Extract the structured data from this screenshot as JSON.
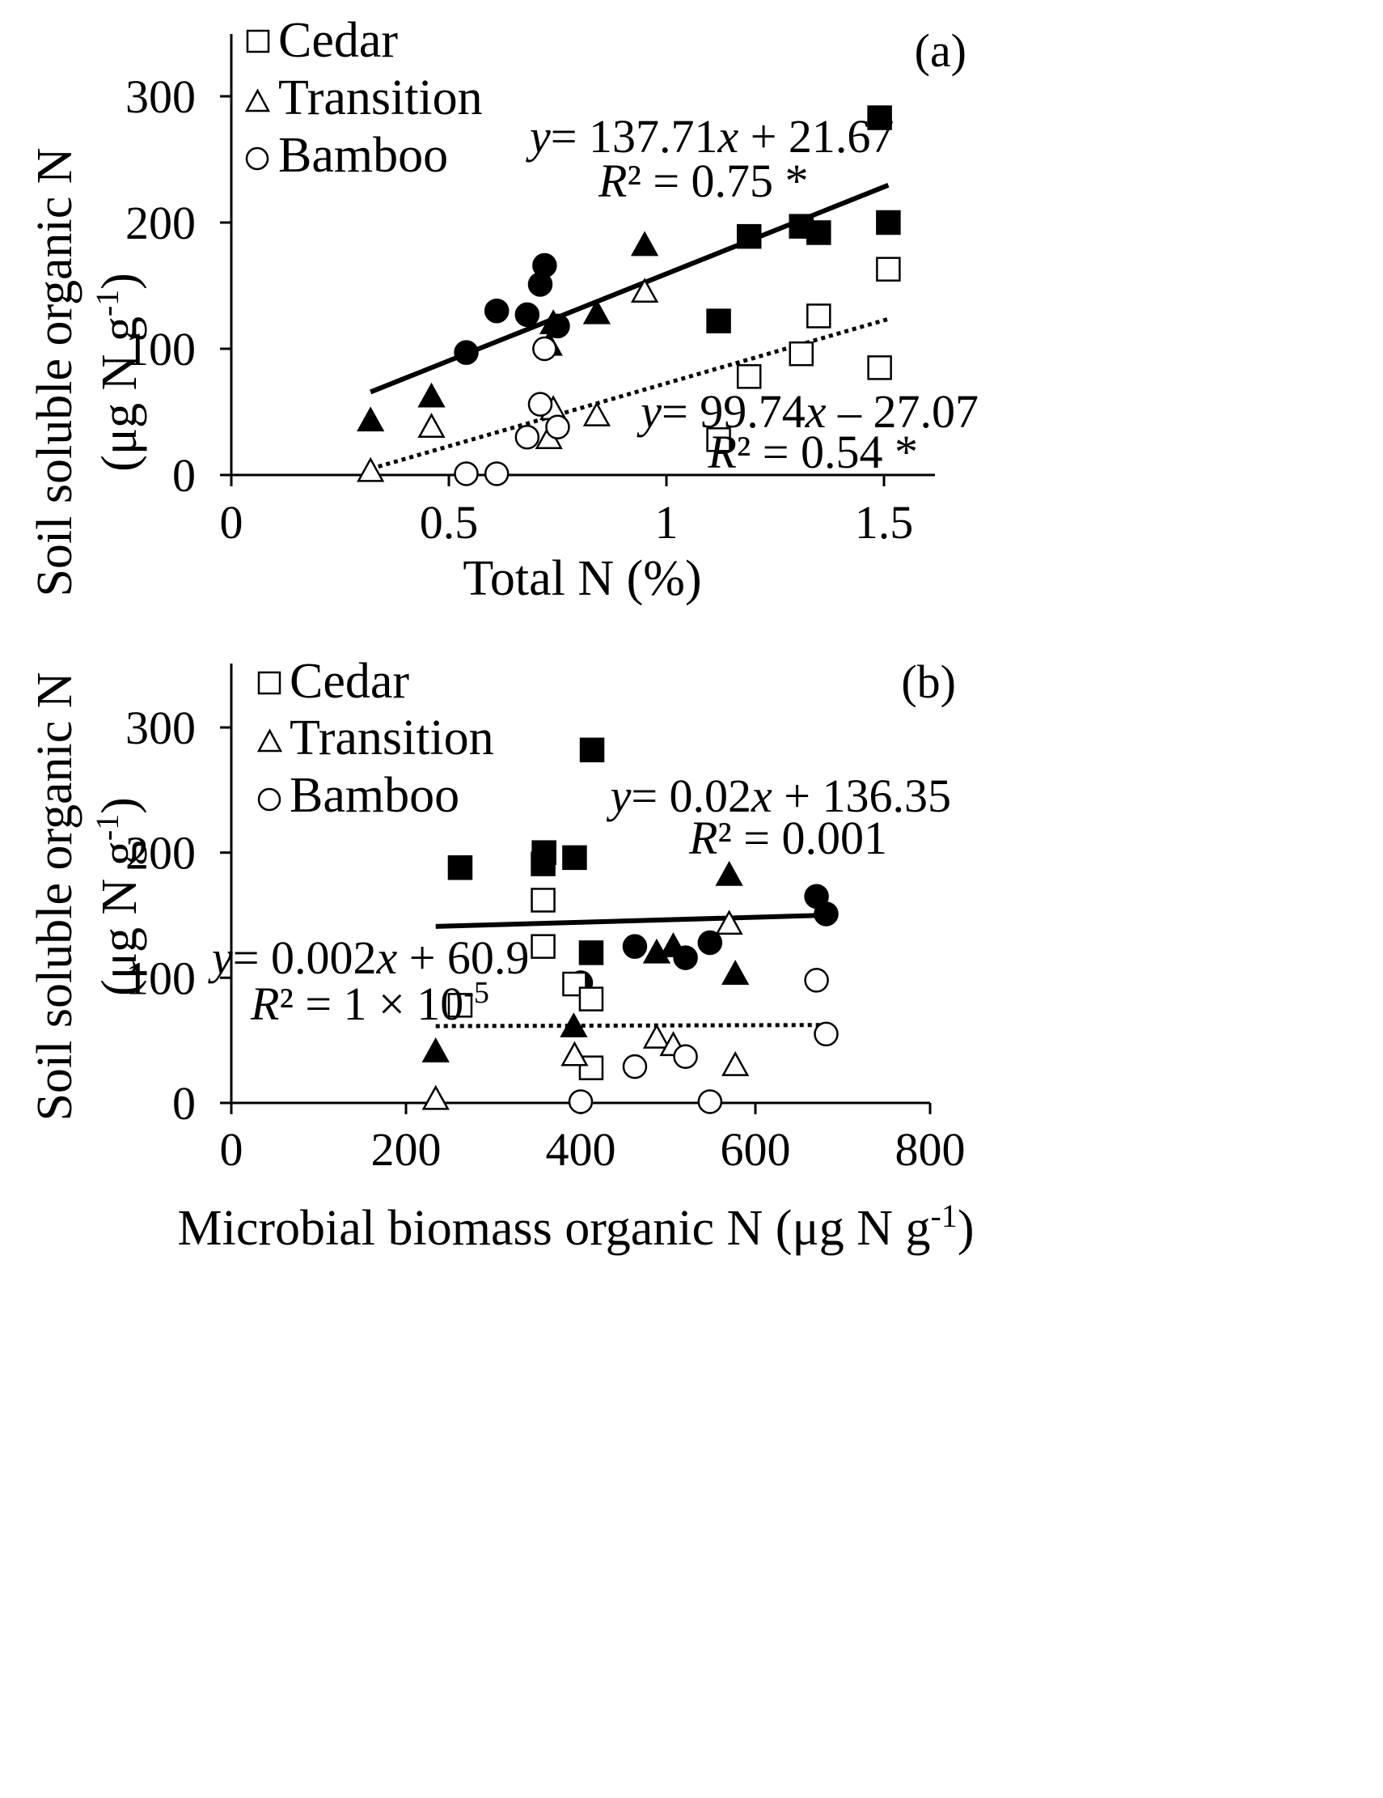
{
  "chart_data": [
    {
      "type": "scatter",
      "panel_label": "(a)",
      "xlabel": "Total N (%)",
      "ylabel_line1": "Soil soluble organic N",
      "ylabel_line2_pre": "(μg N g",
      "ylabel_line2_sup": "-1",
      "ylabel_line2_post": ")",
      "xlim": [
        0,
        1.6
      ],
      "ylim": [
        0,
        350
      ],
      "xticks": [
        0,
        0.5,
        1,
        1.5
      ],
      "xtick_labels": [
        "0",
        "0.5",
        "1",
        "1.5"
      ],
      "yticks": [
        0,
        100,
        200,
        300
      ],
      "ytick_labels": [
        "0",
        "100",
        "200",
        "300"
      ],
      "legend": [
        {
          "marker": "square",
          "label": "Cedar"
        },
        {
          "marker": "triangle",
          "label": "Transition"
        },
        {
          "marker": "circle",
          "label": "Bamboo"
        }
      ],
      "series": [
        {
          "name": "Cedar",
          "marker": "square",
          "filled": true,
          "points": [
            [
              1.49,
              283
            ],
            [
              1.19,
              189
            ],
            [
              1.31,
              197
            ],
            [
              1.35,
              192
            ],
            [
              1.51,
              200
            ],
            [
              1.12,
              122
            ]
          ]
        },
        {
          "name": "Transition",
          "marker": "triangle",
          "filled": true,
          "points": [
            [
              0.32,
              43
            ],
            [
              0.46,
              62
            ],
            [
              0.73,
              103
            ],
            [
              0.74,
              120
            ],
            [
              0.84,
              128
            ],
            [
              0.95,
              182
            ]
          ]
        },
        {
          "name": "Bamboo",
          "marker": "circle",
          "filled": true,
          "points": [
            [
              0.54,
              97
            ],
            [
              0.61,
              130
            ],
            [
              0.68,
              127
            ],
            [
              0.71,
              151
            ],
            [
              0.72,
              166
            ],
            [
              0.75,
              118
            ]
          ]
        },
        {
          "name": "Cedar",
          "marker": "square",
          "filled": false,
          "points": [
            [
              1.51,
              163
            ],
            [
              1.35,
              126
            ],
            [
              1.31,
              96
            ],
            [
              1.19,
              78
            ],
            [
              1.49,
              85
            ],
            [
              1.12,
              28
            ]
          ]
        },
        {
          "name": "Transition",
          "marker": "triangle",
          "filled": false,
          "points": [
            [
              0.32,
              3
            ],
            [
              0.46,
              38
            ],
            [
              0.73,
              29
            ],
            [
              0.74,
              52
            ],
            [
              0.84,
              47
            ],
            [
              0.95,
              145
            ]
          ]
        },
        {
          "name": "Bamboo",
          "marker": "circle",
          "filled": false,
          "points": [
            [
              0.54,
              1
            ],
            [
              0.61,
              1
            ],
            [
              0.68,
              30
            ],
            [
              0.71,
              56
            ],
            [
              0.72,
              100
            ],
            [
              0.75,
              38
            ]
          ]
        }
      ],
      "fits": [
        {
          "style": "solid",
          "slope": 137.71,
          "intercept": 21.67,
          "x_range": [
            0.32,
            1.51
          ],
          "eq": "= 137.71",
          "eq_tail": " + 21.67",
          "r2": " = 0.75 *"
        },
        {
          "style": "dotted",
          "slope": 99.74,
          "intercept": -27.07,
          "x_range": [
            0.32,
            1.51
          ],
          "eq": "= 99.74",
          "eq_tail": " – 27.07",
          "r2": " = 0.54 *"
        }
      ]
    },
    {
      "type": "scatter",
      "panel_label": "(b)",
      "xlabel_pre": "Microbial biomass organic N (μg N g",
      "xlabel_sup": "-1",
      "xlabel_post": ")",
      "ylabel_line1": "Soil soluble organic N",
      "ylabel_line2_pre": "(μg N g",
      "ylabel_line2_sup": "-1",
      "ylabel_line2_post": ")",
      "xlim": [
        0,
        800
      ],
      "ylim": [
        0,
        350
      ],
      "xticks": [
        0,
        200,
        400,
        600,
        800
      ],
      "xtick_labels": [
        "0",
        "200",
        "400",
        "600",
        "800"
      ],
      "yticks": [
        0,
        100,
        200,
        300
      ],
      "ytick_labels": [
        "0",
        "100",
        "200",
        "300"
      ],
      "legend": [
        {
          "marker": "square",
          "label": "Cedar"
        },
        {
          "marker": "triangle",
          "label": "Transition"
        },
        {
          "marker": "circle",
          "label": "Bamboo"
        }
      ],
      "series": [
        {
          "name": "Cedar",
          "marker": "square",
          "filled": true,
          "points": [
            [
              413,
              282
            ],
            [
              262,
              188
            ],
            [
              358,
              200
            ],
            [
              357,
              191
            ],
            [
              393,
              196
            ],
            [
              412,
              120
            ]
          ]
        },
        {
          "name": "Transition",
          "marker": "triangle",
          "filled": true,
          "points": [
            [
              234,
              41
            ],
            [
              392,
              61
            ],
            [
              487,
              120
            ],
            [
              506,
              125
            ],
            [
              570,
              182
            ],
            [
              577,
              103
            ]
          ]
        },
        {
          "name": "Bamboo",
          "marker": "circle",
          "filled": true,
          "points": [
            [
              400,
              96
            ],
            [
              462,
              125
            ],
            [
              520,
              116
            ],
            [
              548,
              128
            ],
            [
              670,
              165
            ],
            [
              681,
              151
            ]
          ]
        },
        {
          "name": "Cedar",
          "marker": "square",
          "filled": false,
          "points": [
            [
              357,
              162
            ],
            [
              357,
              125
            ],
            [
              393,
              95
            ],
            [
              412,
              83
            ],
            [
              262,
              78
            ],
            [
              412,
              28
            ]
          ]
        },
        {
          "name": "Transition",
          "marker": "triangle",
          "filled": false,
          "points": [
            [
              234,
              3
            ],
            [
              393,
              38
            ],
            [
              487,
              52
            ],
            [
              506,
              46
            ],
            [
              570,
              143
            ],
            [
              577,
              30
            ]
          ]
        },
        {
          "name": "Bamboo",
          "marker": "circle",
          "filled": false,
          "points": [
            [
              400,
              1
            ],
            [
              462,
              29
            ],
            [
              520,
              37
            ],
            [
              548,
              1
            ],
            [
              670,
              98
            ],
            [
              681,
              55
            ]
          ]
        }
      ],
      "fits": [
        {
          "style": "solid",
          "slope": 0.02,
          "intercept": 136.35,
          "x_range": [
            234,
            681
          ],
          "eq": "= 0.02",
          "eq_tail": " + 136.35",
          "r2": " = 0.001"
        },
        {
          "style": "dotted",
          "slope": 0.002,
          "intercept": 60.9,
          "x_range": [
            234,
            681
          ],
          "eq": "= 0.002",
          "eq_tail": " + 60.9",
          "r2": " = 1 × 10",
          "r2_sup": "-5"
        }
      ]
    }
  ]
}
